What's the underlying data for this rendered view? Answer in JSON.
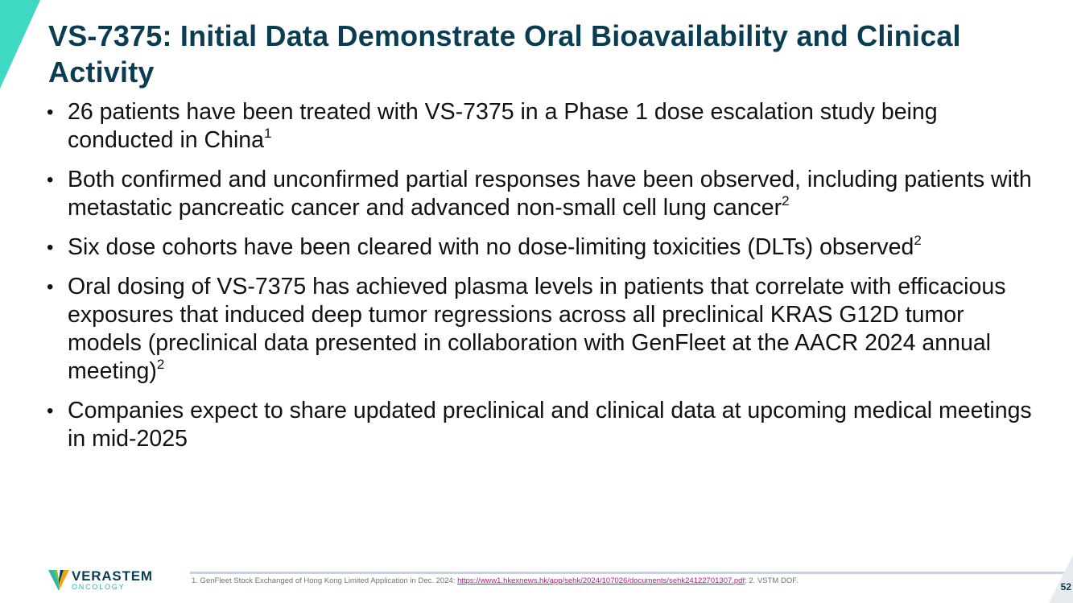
{
  "title": "VS-7375: Initial Data Demonstrate Oral Bioavailability and Clinical Activity",
  "bullets": [
    {
      "text": "26 patients have been treated with VS-7375 in a Phase 1 dose escalation study being conducted in China",
      "sup": "1"
    },
    {
      "text": "Both confirmed and unconfirmed partial responses have been observed, including patients with metastatic pancreatic cancer and advanced non-small cell lung cancer",
      "sup": "2"
    },
    {
      "text": "Six dose cohorts have been cleared with no dose-limiting toxicities (DLTs) observed",
      "sup": "2"
    },
    {
      "text": "Oral dosing of VS-7375 has achieved plasma levels in patients that correlate with efficacious exposures that induced deep tumor regressions across all preclinical KRAS G12D tumor models (preclinical data presented in collaboration with GenFleet at the AACR 2024 annual meeting)",
      "sup": "2"
    },
    {
      "text": "Companies expect to share updated preclinical and clinical data at upcoming medical meetings in mid-2025",
      "sup": ""
    }
  ],
  "logo": {
    "name": "VERASTEM",
    "sub": "ONCOLOGY"
  },
  "footnote": {
    "before": "1. GenFleet Stock Exchanged of Hong Kong Limited Application in Dec. 2024: ",
    "link": "https://www1.hkexnews.hk/app/sehk/2024/107026/documents/sehk24122701307.pdf",
    "after": "; 2. VSTM DOF."
  },
  "page_number": "52",
  "colors": {
    "title": "#0b3d52",
    "accent": "#3ed8c3",
    "link": "#c0188a"
  },
  "icons": {
    "bullet": "•"
  }
}
